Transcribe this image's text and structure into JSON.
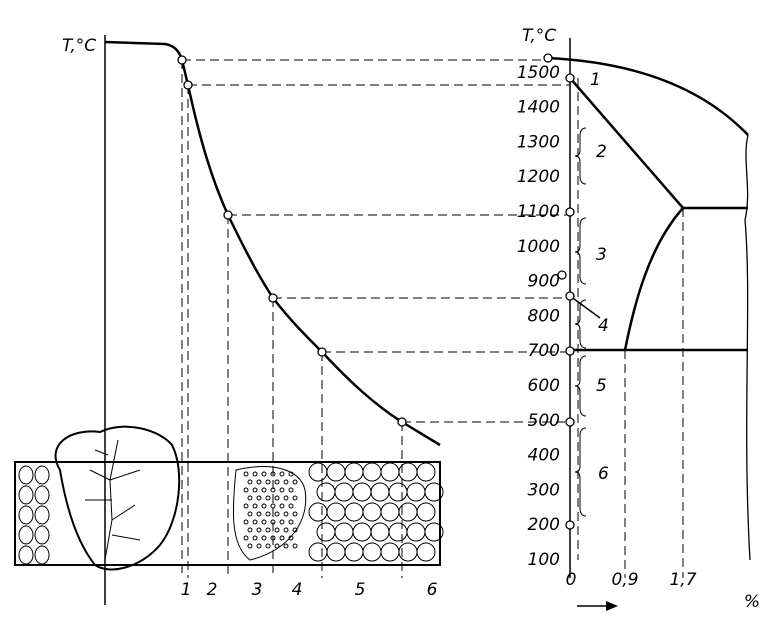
{
  "left_axis_label": "T,°C",
  "right_axis_label": "T,°C",
  "temperature_ticks": [
    1500,
    1400,
    1300,
    1200,
    1100,
    1000,
    900,
    800,
    700,
    600,
    500,
    400,
    300,
    200,
    100
  ],
  "zone_labels": [
    "1",
    "2",
    "3",
    "4",
    "5",
    "6"
  ],
  "range_labels": [
    "1",
    "2",
    "3",
    "4",
    "5",
    "6"
  ],
  "composition_ticks": [
    "0",
    "0,9",
    "1,7"
  ],
  "composition_unit": "%"
}
